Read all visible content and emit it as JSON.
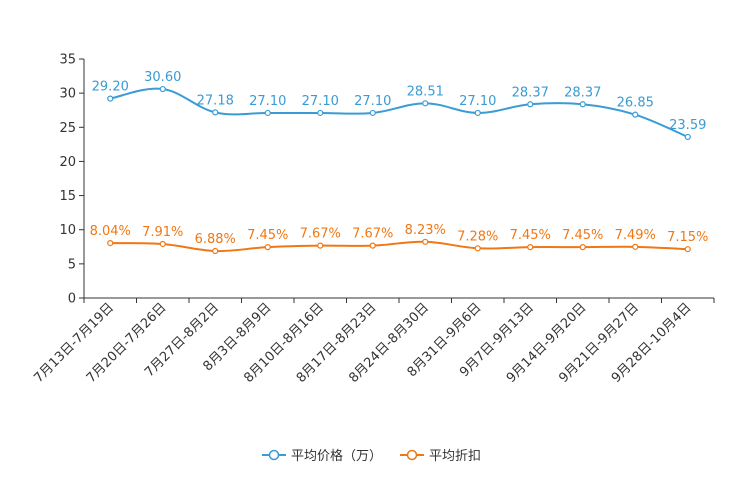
{
  "chart_data": {
    "type": "line",
    "title": "",
    "xlabel": "",
    "ylabel": "",
    "ylim": [
      0,
      35
    ],
    "yticks": [
      0,
      5,
      10,
      15,
      20,
      25,
      30,
      35
    ],
    "grid": false,
    "legend_position": "bottom",
    "categories": [
      "7月13日-7月19日",
      "7月20日-7月26日",
      "7月27日-8月2日",
      "8月3日-8月9日",
      "8月10日-8月16日",
      "8月17日-8月23日",
      "8月24日-8月30日",
      "8月31日-9月6日",
      "9月7日-9月13日",
      "9月14日-9月20日",
      "9月21日-9月27日",
      "9月28日-10月4日"
    ],
    "series": [
      {
        "name": "平均价格（万）",
        "color": "#3a9bd5",
        "values": [
          29.2,
          30.6,
          27.18,
          27.1,
          27.1,
          27.1,
          28.51,
          27.1,
          28.37,
          28.37,
          26.85,
          23.59
        ],
        "labels": [
          "29.20",
          "30.60",
          "27.18",
          "27.10",
          "27.10",
          "27.10",
          "28.51",
          "27.10",
          "28.37",
          "28.37",
          "26.85",
          "23.59"
        ]
      },
      {
        "name": "平均折扣",
        "color": "#f07814",
        "values": [
          8.04,
          7.91,
          6.88,
          7.45,
          7.67,
          7.67,
          8.23,
          7.28,
          7.45,
          7.45,
          7.49,
          7.15
        ],
        "labels": [
          "8.04%",
          "7.91%",
          "6.88%",
          "7.45%",
          "7.67%",
          "7.67%",
          "8.23%",
          "7.28%",
          "7.45%",
          "7.45%",
          "7.49%",
          "7.15%"
        ]
      }
    ]
  }
}
